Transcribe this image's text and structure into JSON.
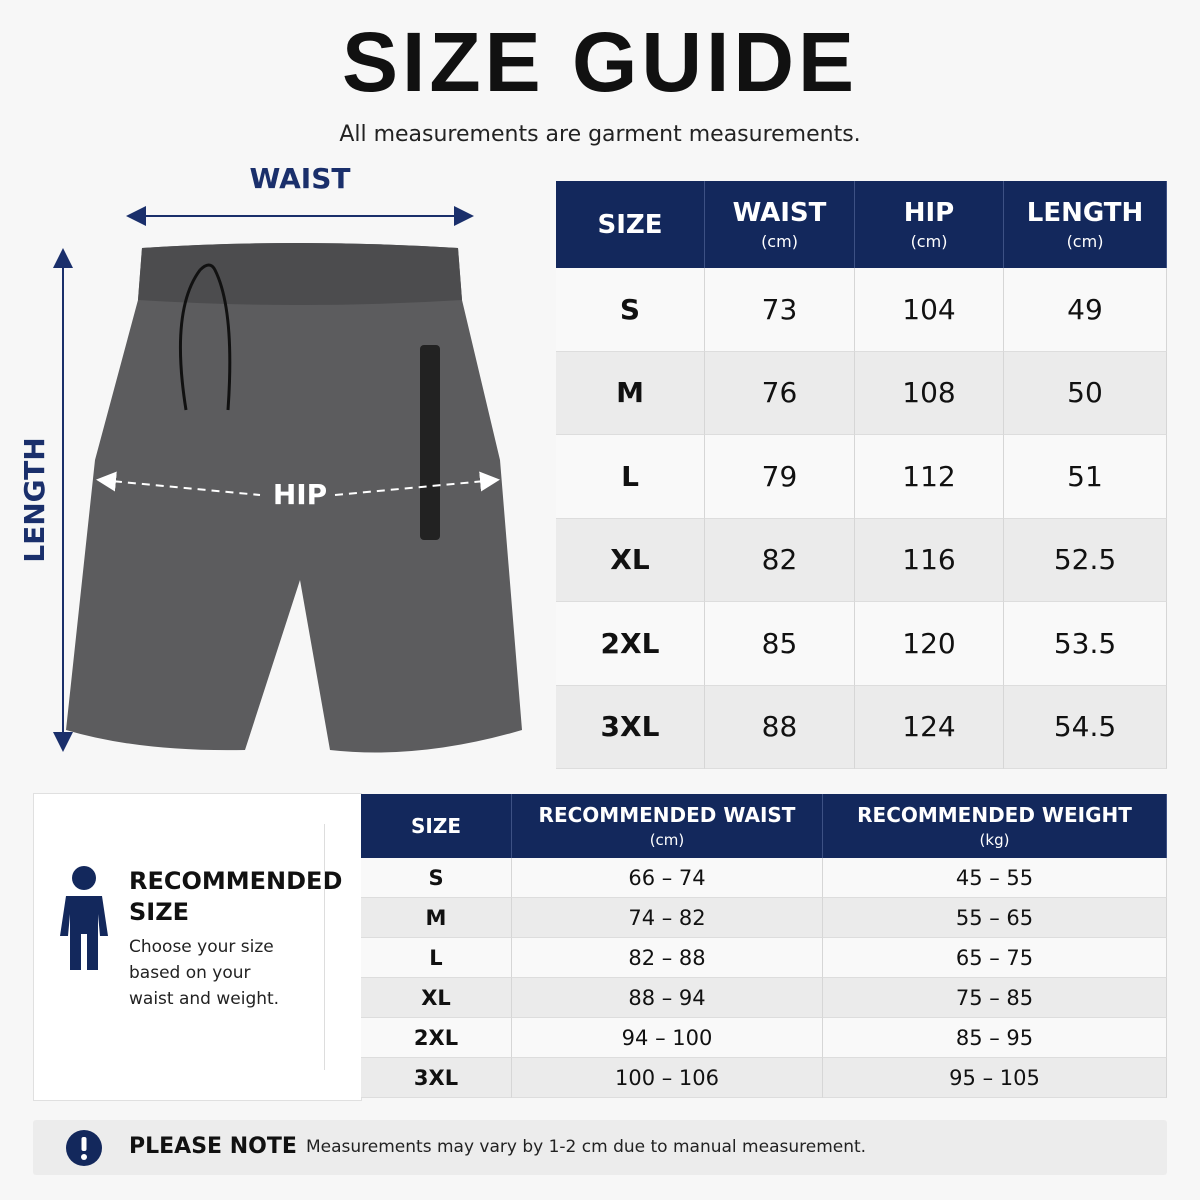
{
  "header": {
    "title": "SIZE GUIDE",
    "subtitle": "All measurements are garment measurements."
  },
  "diagram": {
    "waist": "WAIST",
    "hip": "HIP",
    "length": "LENGTH"
  },
  "table": {
    "columns": [
      {
        "label": "SIZE"
      },
      {
        "label": "WAIST",
        "unit": "(cm)"
      },
      {
        "label": "HIP",
        "unit": "(cm)"
      },
      {
        "label": "LENGTH",
        "unit": "(cm)"
      }
    ],
    "rows": [
      [
        "S",
        73,
        104,
        49
      ],
      [
        "M",
        76,
        108,
        50
      ],
      [
        "L",
        79,
        112,
        51
      ],
      [
        "XL",
        82,
        116,
        52.5
      ],
      [
        "2XL",
        85,
        120,
        53.5
      ],
      [
        "3XL",
        88,
        124,
        54.5
      ]
    ]
  },
  "recommended": {
    "title": "RECOMMENDED SIZE",
    "text": "Choose your size based on your waist and weight.",
    "columns": [
      {
        "label": "SIZE"
      },
      {
        "label": "RECOMMENDED WAIST",
        "unit": "(cm)"
      },
      {
        "label": "RECOMMENDED WEIGHT",
        "unit": "(kg)"
      }
    ],
    "rows": [
      [
        "S",
        "66 – 74",
        "45 – 55"
      ],
      [
        "M",
        "74 – 82",
        "55 – 65"
      ],
      [
        "L",
        "82 – 88",
        "65 – 75"
      ],
      [
        "XL",
        "88 – 94",
        "75 – 85"
      ],
      [
        "2XL",
        "94 – 100",
        "85 – 95"
      ],
      [
        "3XL",
        "100 – 106",
        "95 – 105"
      ]
    ]
  },
  "note": {
    "label": "PLEASE NOTE",
    "text": "Measurements may vary by 1-2 cm due to manual measurement."
  }
}
